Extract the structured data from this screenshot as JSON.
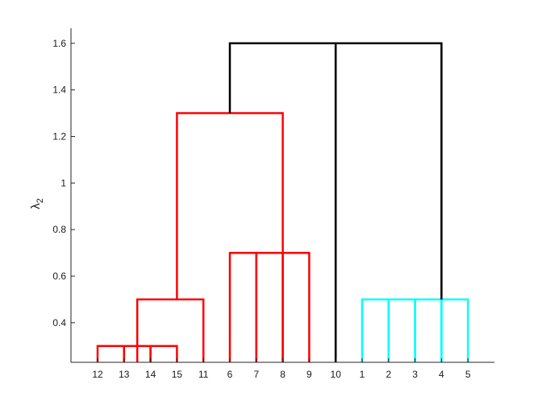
{
  "chart_data": {
    "type": "dendrogram",
    "title": "",
    "xlabel": "",
    "ylabel": "λ",
    "ylabel_subscript": "2",
    "ylim": [
      0.23,
      1.665
    ],
    "yticks": [
      0.4,
      0.6,
      0.8,
      1.0,
      1.2,
      1.4,
      1.6
    ],
    "ytick_labels": [
      "0.4",
      "0.6",
      "0.8",
      "1",
      "1.2",
      "1.4",
      "1.6"
    ],
    "leaf_order": [
      "12",
      "13",
      "14",
      "15",
      "11",
      "6",
      "7",
      "8",
      "9",
      "10",
      "1",
      "2",
      "3",
      "4",
      "5"
    ],
    "colors": {
      "cluster_a": "#ff0000",
      "cluster_b": "#00ffff",
      "root": "#000000",
      "axis": "#262626"
    },
    "links": [
      {
        "left": 0,
        "right": 1,
        "height": 0.3,
        "color": "#ff0000"
      },
      {
        "left": 1,
        "right": 2,
        "height": 0.3,
        "color": "#ff0000"
      },
      {
        "left": 2,
        "right": 3,
        "height": 0.3,
        "color": "#ff0000"
      },
      {
        "left": 1.5,
        "right": 4,
        "height": 0.5,
        "color": "#ff0000"
      },
      {
        "left": 5,
        "right": 6,
        "height": 0.7,
        "color": "#ff0000"
      },
      {
        "left": 6,
        "right": 7,
        "height": 0.7,
        "color": "#ff0000"
      },
      {
        "left": 7,
        "right": 8,
        "height": 0.7,
        "color": "#ff0000"
      },
      {
        "left": 10,
        "right": 11,
        "height": 0.5,
        "color": "#00ffff"
      },
      {
        "left": 11,
        "right": 12,
        "height": 0.5,
        "color": "#00ffff"
      },
      {
        "left": 12,
        "right": 13,
        "height": 0.5,
        "color": "#00ffff"
      },
      {
        "left": 13,
        "right": 14,
        "height": 0.5,
        "color": "#00ffff"
      },
      {
        "left": 3,
        "right": 7,
        "height": 1.3,
        "color": "#ff0000",
        "left_from": 0.5,
        "right_from": 0.7
      },
      {
        "left": 5,
        "right": 9,
        "height": 1.6,
        "color": "#000000",
        "left_from": 1.3
      },
      {
        "left": 9,
        "right": 13,
        "height": 1.6,
        "color": "#000000",
        "right_from": 0.5
      }
    ]
  }
}
